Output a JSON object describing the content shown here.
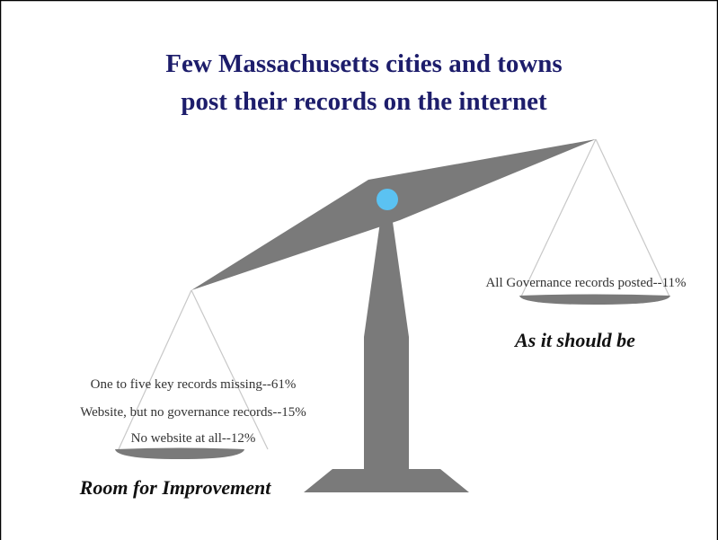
{
  "title": {
    "lines": [
      "Few Massachusetts cities and towns",
      "post their records on the internet"
    ]
  },
  "left_pan": {
    "items": [
      "One to five key records missing--61%",
      "Website, but no governance records--15%",
      "No website at all--12%"
    ],
    "caption": "Room for Improvement"
  },
  "right_pan": {
    "items": [
      "All Governance records posted--11%"
    ],
    "caption": "As it should be"
  }
}
